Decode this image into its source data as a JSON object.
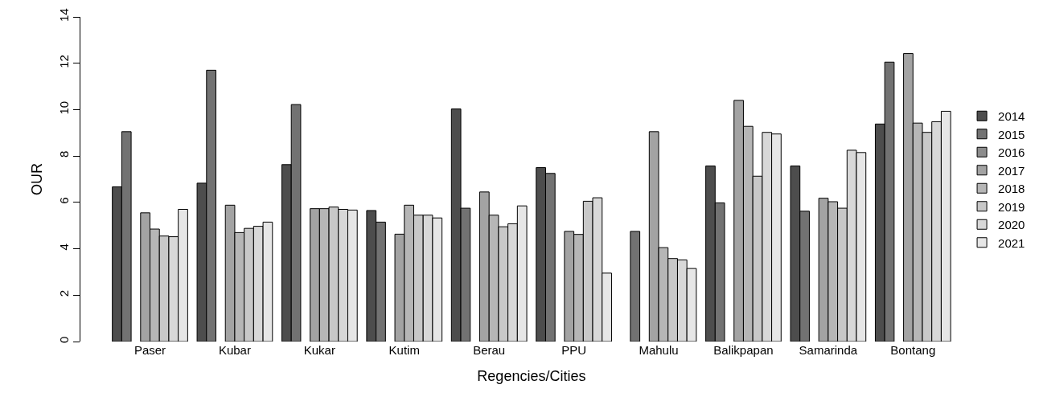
{
  "chart_data": {
    "type": "bar",
    "xlabel": "Regencies/Cities",
    "ylabel": "OUR",
    "categories": [
      "Paser",
      "Kubar",
      "Kukar",
      "Kutim",
      "Berau",
      "PPU",
      "Mahulu",
      "Balikpapan",
      "Samarinda",
      "Bontang"
    ],
    "series": [
      {
        "name": "2014",
        "color": "#4d4d4d",
        "values": [
          6.67,
          6.83,
          7.63,
          5.65,
          10.03,
          7.5,
          null,
          7.57,
          7.57,
          9.38
        ]
      },
      {
        "name": "2015",
        "color": "#727272",
        "values": [
          9.05,
          11.7,
          10.22,
          5.15,
          5.75,
          7.25,
          4.75,
          5.98,
          5.62,
          12.05
        ]
      },
      {
        "name": "2016",
        "color": "#8c8c8c",
        "values": [
          null,
          null,
          null,
          null,
          null,
          null,
          null,
          null,
          null,
          null
        ]
      },
      {
        "name": "2017",
        "color": "#a3a3a3",
        "values": [
          5.55,
          5.88,
          5.73,
          4.63,
          6.45,
          4.75,
          9.05,
          10.4,
          6.18,
          12.42
        ]
      },
      {
        "name": "2018",
        "color": "#b6b6b6",
        "values": [
          4.85,
          4.7,
          5.73,
          5.88,
          5.45,
          4.62,
          4.05,
          9.28,
          6.03,
          9.42
        ]
      },
      {
        "name": "2019",
        "color": "#c8c8c8",
        "values": [
          4.55,
          4.88,
          5.8,
          5.45,
          4.95,
          6.05,
          3.58,
          7.13,
          5.75,
          9.02
        ]
      },
      {
        "name": "2020",
        "color": "#d8d8d8",
        "values": [
          4.52,
          4.97,
          5.7,
          5.45,
          5.08,
          6.2,
          3.52,
          9.02,
          8.25,
          9.48
        ]
      },
      {
        "name": "2021",
        "color": "#e6e6e6",
        "values": [
          5.7,
          5.15,
          5.67,
          5.33,
          5.85,
          2.95,
          3.15,
          8.95,
          8.15,
          9.93
        ]
      }
    ],
    "ylim": [
      0,
      14
    ],
    "yticks": [
      0,
      2,
      4,
      6,
      8,
      10,
      12,
      14
    ],
    "grid": false,
    "legend": "right"
  }
}
